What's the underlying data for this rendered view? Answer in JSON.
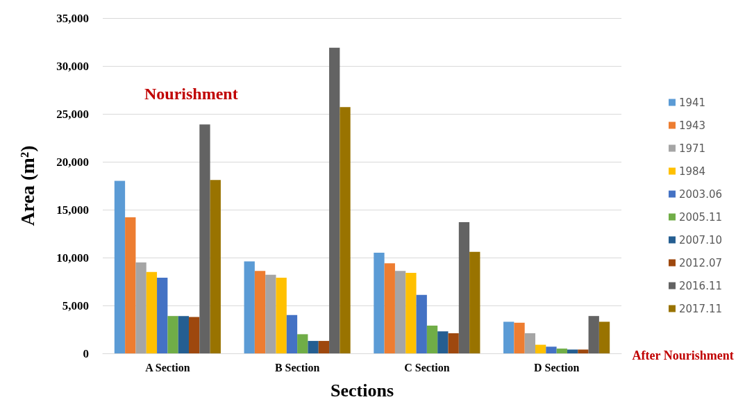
{
  "chart_data": {
    "type": "bar",
    "xlabel": "Sections",
    "ylabel": "Area (m²)",
    "categories": [
      "A Section",
      "B Section",
      "C Section",
      "D Section"
    ],
    "series": [
      {
        "name": "1941",
        "color": "#5b9bd5",
        "values": [
          18000,
          9600,
          10500,
          3300
        ]
      },
      {
        "name": "1943",
        "color": "#ed7d31",
        "values": [
          14200,
          8600,
          9400,
          3200
        ]
      },
      {
        "name": "1971",
        "color": "#a5a5a5",
        "values": [
          9500,
          8200,
          8600,
          2100
        ]
      },
      {
        "name": "1984",
        "color": "#ffc000",
        "values": [
          8500,
          7900,
          8400,
          900
        ]
      },
      {
        "name": "2003.06",
        "color": "#4472c4",
        "values": [
          7900,
          4000,
          6100,
          700
        ]
      },
      {
        "name": "2005.11",
        "color": "#70ad47",
        "values": [
          3900,
          2000,
          2900,
          500
        ]
      },
      {
        "name": "2007.10",
        "color": "#255e91",
        "values": [
          3900,
          1300,
          2300,
          400
        ]
      },
      {
        "name": "2012.07",
        "color": "#9e480e",
        "values": [
          3800,
          1300,
          2100,
          400
        ]
      },
      {
        "name": "2016.11",
        "color": "#636363",
        "values": [
          23900,
          31900,
          13700,
          3900
        ]
      },
      {
        "name": "2017.11",
        "color": "#997300",
        "values": [
          18100,
          25700,
          10600,
          3300
        ]
      }
    ],
    "ylim": [
      0,
      35000
    ],
    "yticks": [
      0,
      {
        "value": 5000,
        "label": "5,000"
      },
      {
        "value": 10000,
        "label": "10,000"
      },
      {
        "value": 15000,
        "label": "15,000"
      },
      {
        "value": 20000,
        "label": "20,000"
      },
      {
        "value": 25000,
        "label": "25,000"
      },
      {
        "value": 30000,
        "label": "30,000"
      },
      {
        "value": 35000,
        "label": "35,000"
      }
    ],
    "grid": "y",
    "legend": "right",
    "annotations": [
      "Nourishment",
      "After Nourishment"
    ]
  }
}
